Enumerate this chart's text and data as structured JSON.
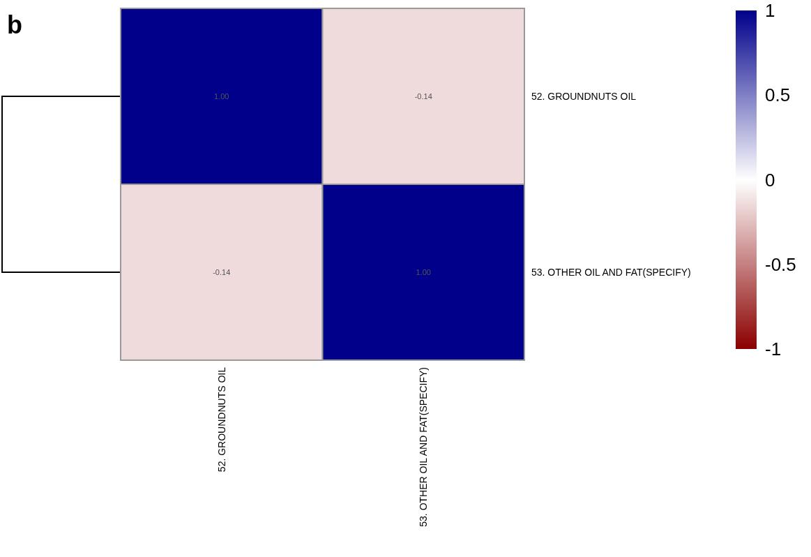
{
  "chart_data": {
    "type": "heatmap",
    "categories": [
      "52. GROUNDNUTS OIL",
      "53. OTHER OIL AND FAT(SPECIFY)"
    ],
    "y_categories": [
      "52. GROUNDNUTS OIL",
      "53. OTHER OIL AND FAT(SPECIFY)"
    ],
    "cells": [
      [
        1,
        -0.14
      ],
      [
        -0.14,
        1
      ]
    ],
    "cell_labels": [
      [
        "1.00",
        "-0.14"
      ],
      [
        "-0.14",
        "1.00"
      ]
    ],
    "clim": [
      -1,
      1
    ],
    "cticks": [
      -1,
      -0.5,
      0,
      0.5,
      1
    ],
    "annotations": [
      "b"
    ]
  }
}
